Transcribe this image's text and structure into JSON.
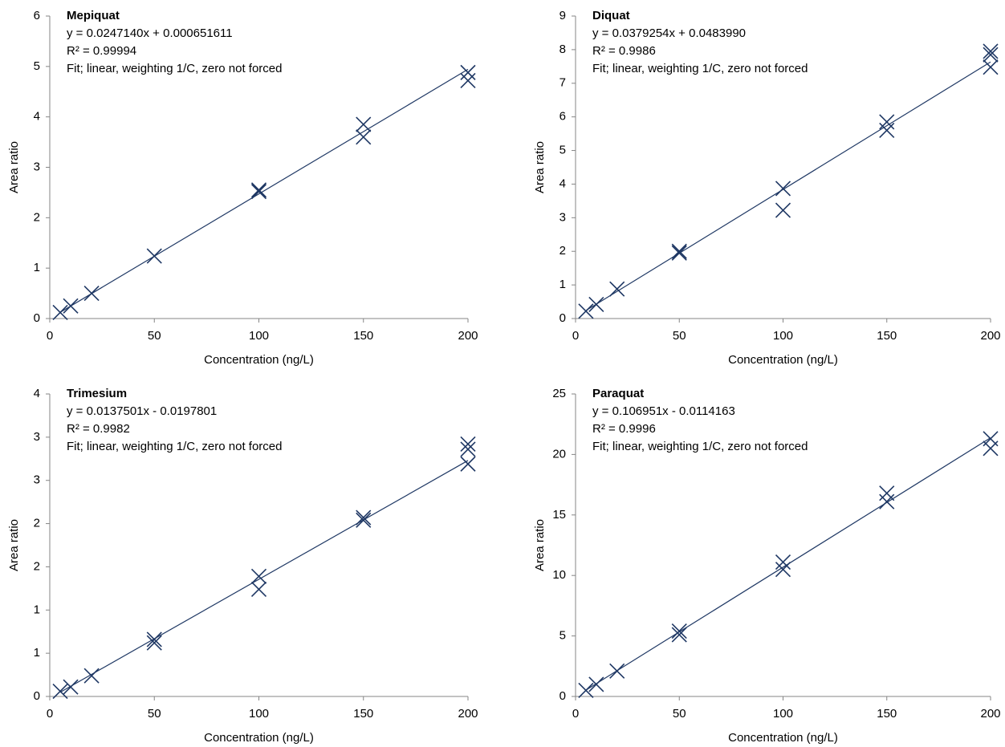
{
  "chart_data": [
    {
      "type": "scatter",
      "title": "Mepiquat",
      "annotations": [
        "y = 0.0247140x + 0.000651611",
        "R² = 0.99994",
        "Fit; linear, weighting 1/C, zero not forced"
      ],
      "x_label": "Concentration  (ng/L)",
      "y_label": "Area ratio",
      "color": "#1f3864",
      "x": [
        5,
        10,
        20,
        50,
        100,
        100,
        150,
        150,
        200,
        200
      ],
      "values": [
        0.12,
        0.25,
        0.5,
        1.24,
        2.52,
        2.55,
        3.85,
        3.6,
        4.88,
        4.72
      ],
      "fit": {
        "x": [
          5,
          200
        ],
        "values": [
          0.124,
          4.943
        ]
      },
      "xlim": [
        0,
        200
      ],
      "xticks": [
        0,
        50,
        100,
        150,
        200
      ],
      "ylim": [
        0,
        6
      ],
      "yticks": [
        0,
        1,
        2,
        3,
        4,
        5,
        6
      ]
    },
    {
      "type": "scatter",
      "title": "Diquat",
      "annotations": [
        "y = 0.0379254x + 0.0483990",
        "R² = 0.9986",
        "Fit; linear, weighting 1/C, zero not forced"
      ],
      "x_label": "Concentration  (ng/L)",
      "y_label": "Area ratio",
      "color": "#1f3864",
      "x": [
        5,
        10,
        20,
        50,
        50,
        100,
        100,
        150,
        150,
        200,
        200,
        200
      ],
      "values": [
        0.22,
        0.42,
        0.88,
        1.95,
        2.0,
        3.87,
        3.22,
        5.85,
        5.6,
        7.95,
        7.85,
        7.48
      ],
      "fit": {
        "x": [
          5,
          200
        ],
        "values": [
          0.238,
          7.633
        ]
      },
      "xlim": [
        0,
        200
      ],
      "xticks": [
        0,
        50,
        100,
        150,
        200
      ],
      "ylim": [
        0,
        9
      ],
      "yticks": [
        0,
        1,
        2,
        3,
        4,
        5,
        6,
        7,
        8,
        9
      ]
    },
    {
      "type": "scatter",
      "title": "Trimesium",
      "annotations": [
        "y = 0.0137501x - 0.0197801",
        "R² = 0.9982",
        "Fit; linear, weighting 1/C, zero not forced"
      ],
      "x_label": "Concentration  (ng/L)",
      "y_label": "Area ratio",
      "color": "#1f3864",
      "x": [
        5,
        10,
        20,
        50,
        50,
        100,
        100,
        150,
        150,
        200,
        200,
        200
      ],
      "values": [
        0.06,
        0.11,
        0.24,
        0.66,
        0.62,
        1.39,
        1.24,
        2.07,
        2.04,
        2.92,
        2.86,
        2.69
      ],
      "fit": {
        "x": [
          5,
          200
        ],
        "values": [
          0.049,
          2.73
        ]
      },
      "xlim": [
        0,
        200
      ],
      "xticks": [
        0,
        50,
        100,
        150,
        200
      ],
      "ylim": [
        0,
        3.5
      ],
      "yticks": [
        0,
        {
          "value": 0.5,
          "label": "1"
        },
        1,
        {
          "value": 1.5,
          "label": "2"
        },
        2,
        {
          "value": 2.5,
          "label": "3"
        },
        3,
        {
          "value": 3.5,
          "label": "4"
        }
      ]
    },
    {
      "type": "scatter",
      "title": "Paraquat",
      "annotations": [
        "y = 0.106951x - 0.0114163",
        "R² = 0.9996",
        "Fit; linear, weighting 1/C, zero not forced"
      ],
      "x_label": "Concentration  (ng/L)",
      "y_label": "Area ratio",
      "color": "#1f3864",
      "x": [
        5,
        10,
        20,
        50,
        50,
        100,
        100,
        150,
        150,
        200,
        200
      ],
      "values": [
        0.5,
        1.0,
        2.1,
        5.4,
        5.1,
        11.1,
        10.5,
        16.8,
        16.1,
        21.3,
        20.5
      ],
      "fit": {
        "x": [
          5,
          200
        ],
        "values": [
          0.523,
          21.379
        ]
      },
      "xlim": [
        0,
        200
      ],
      "xticks": [
        0,
        50,
        100,
        150,
        200
      ],
      "ylim": [
        0,
        25
      ],
      "yticks": [
        0,
        5,
        10,
        15,
        20,
        25
      ]
    }
  ]
}
